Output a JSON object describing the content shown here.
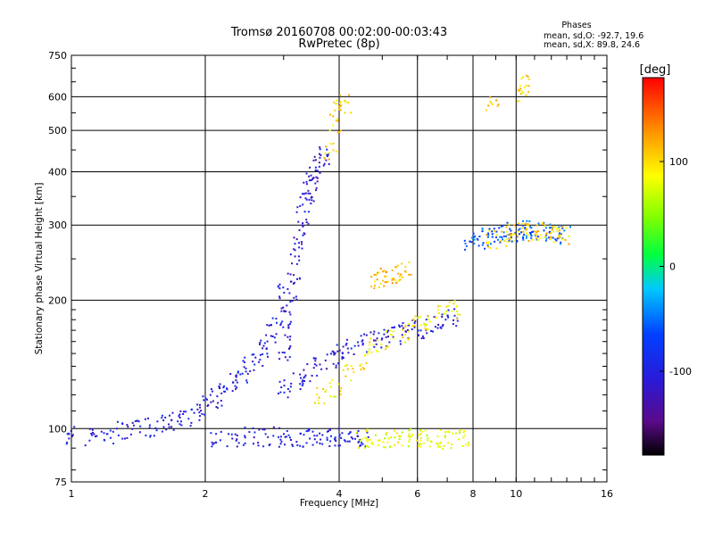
{
  "chart_data": {
    "type": "scatter",
    "title": "Tromsø 20160708 00:02:00-00:03:43",
    "subtitle": "RwPretec (8p)",
    "xlabel": "Frequency [MHz]",
    "ylabel": "Stationary phase Virtual Height [km]",
    "x_scale": "log",
    "y_scale": "log",
    "xlim": [
      1,
      16
    ],
    "ylim": [
      75,
      750
    ],
    "x_ticks": [
      1,
      2,
      4,
      6,
      8,
      10,
      16
    ],
    "x_tick_labels": [
      "1",
      "2",
      "4",
      "6",
      "8",
      "10",
      "16"
    ],
    "y_ticks": [
      75,
      100,
      200,
      300,
      400,
      500,
      600,
      750
    ],
    "y_tick_labels": [
      "75",
      "100",
      "200",
      "300",
      "400",
      "500",
      "600",
      "750"
    ],
    "grid": true,
    "stats": {
      "heading": "Phases",
      "line_o": "mean, sd,O: -92.7, 19.6",
      "line_x": "mean, sd,X:  89.8, 24.6"
    },
    "colorbar": {
      "label": "[deg]",
      "range": [
        -180,
        180
      ],
      "ticks": [
        100,
        0,
        -100
      ],
      "tick_labels": [
        "100",
        "0",
        "-100"
      ],
      "colormap": "rainbow (black-purple-blue-cyan-green-yellow-orange-red)"
    },
    "traces": [
      {
        "name": "",
        "phase_deg": -100,
        "x": [
          1.0,
          1.1,
          1.2,
          1.3,
          1.4,
          1.5,
          1.6,
          1.7,
          1.8,
          1.9,
          2.0,
          2.1,
          2.2,
          2.3,
          2.4,
          2.5,
          2.6,
          2.7,
          2.8,
          2.9,
          3.0
        ],
        "y": [
          97,
          96,
          97,
          99,
          100,
          101,
          103,
          104,
          107,
          110,
          114,
          118,
          123,
          128,
          133,
          140,
          147,
          156,
          168,
          185,
          210
        ]
      },
      {
        "name": "",
        "phase_deg": -110,
        "x": [
          3.0,
          3.05,
          3.1,
          3.15,
          3.2,
          3.25,
          3.3,
          3.35,
          3.4,
          3.45,
          3.5,
          3.6,
          3.7
        ],
        "y": [
          150,
          170,
          195,
          225,
          255,
          285,
          315,
          340,
          360,
          380,
          400,
          420,
          440
        ]
      },
      {
        "name": "",
        "phase_deg": -105,
        "x": [
          3.0,
          3.2,
          3.4,
          3.6,
          3.8,
          4.0,
          4.2,
          4.5,
          4.8,
          5.1,
          5.4,
          5.7,
          6.0,
          6.4,
          6.8,
          7.2
        ],
        "y": [
          125,
          130,
          135,
          140,
          145,
          150,
          155,
          160,
          163,
          165,
          167,
          169,
          172,
          175,
          178,
          182
        ]
      },
      {
        "name": "",
        "phase_deg": 90,
        "x": [
          3.6,
          3.9,
          4.2,
          4.5,
          4.8,
          5.2,
          5.6,
          6.0,
          6.4,
          6.8,
          7.2
        ],
        "y": [
          120,
          125,
          135,
          145,
          155,
          162,
          168,
          175,
          180,
          185,
          190
        ]
      },
      {
        "name": "",
        "phase_deg": -100,
        "x": [
          2.1,
          2.3,
          2.5,
          2.7,
          2.9,
          3.1,
          3.3,
          3.5,
          3.7,
          3.9,
          4.1,
          4.3,
          4.5
        ],
        "y": [
          96,
          96,
          96,
          96,
          96,
          96,
          96,
          96,
          96,
          96,
          96,
          96,
          96
        ]
      },
      {
        "name": "",
        "phase_deg": 80,
        "x": [
          4.5,
          4.7,
          5.0,
          5.3,
          5.6,
          5.9,
          6.2,
          6.5,
          6.8,
          7.2,
          7.6
        ],
        "y": [
          95,
          95,
          95,
          95,
          95,
          95,
          95,
          95,
          95,
          95,
          95
        ]
      },
      {
        "name": "",
        "phase_deg": 110,
        "x": [
          4.8,
          5.0,
          5.2,
          5.4,
          5.6
        ],
        "y": [
          225,
          228,
          230,
          232,
          235
        ]
      },
      {
        "name": "",
        "phase_deg": -60,
        "x": [
          7.8,
          8.2,
          8.6,
          9.0,
          9.4,
          9.8,
          10.2,
          10.6,
          11.0,
          11.6,
          12.2,
          12.8
        ],
        "y": [
          275,
          278,
          282,
          285,
          288,
          290,
          292,
          293,
          292,
          290,
          288,
          285
        ]
      },
      {
        "name": "",
        "phase_deg": 100,
        "x": [
          8.8,
          9.3,
          9.8,
          10.3,
          10.8,
          11.3,
          11.8,
          12.3,
          12.8
        ],
        "y": [
          280,
          283,
          287,
          290,
          292,
          291,
          289,
          287,
          284
        ]
      },
      {
        "name": "",
        "phase_deg": 100,
        "x": [
          3.8,
          3.9,
          4.0,
          4.1,
          8.8,
          10.3,
          10.35
        ],
        "y": [
          450,
          520,
          570,
          580,
          570,
          620,
          650
        ]
      }
    ]
  }
}
